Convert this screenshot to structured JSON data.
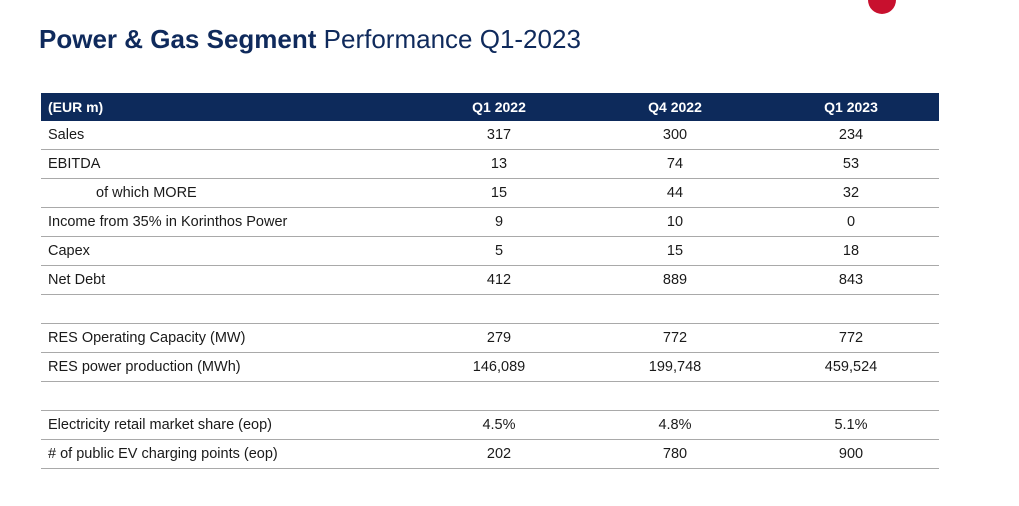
{
  "title": {
    "bold": "Power & Gas Segment",
    "light": "Performance Q1-2023"
  },
  "table": {
    "headers": [
      "(EUR m)",
      "Q1 2022",
      "Q4 2022",
      "Q1 2023"
    ],
    "rows": [
      {
        "label": "Sales",
        "values": [
          "317",
          "300",
          "234"
        ],
        "indent": false
      },
      {
        "label": "EBITDA",
        "values": [
          "13",
          "74",
          "53"
        ],
        "indent": false
      },
      {
        "label": "of which MORE",
        "values": [
          "15",
          "44",
          "32"
        ],
        "indent": true
      },
      {
        "label": "Income from 35% in Korinthos Power",
        "values": [
          "9",
          "10",
          "0"
        ],
        "indent": false
      },
      {
        "label": "Capex",
        "values": [
          "5",
          "15",
          "18"
        ],
        "indent": false
      },
      {
        "label": "Net Debt",
        "values": [
          "412",
          "889",
          "843"
        ],
        "indent": false
      },
      {
        "spacer": true
      },
      {
        "label": "RES Operating Capacity (MW)",
        "values": [
          "279",
          "772",
          "772"
        ],
        "indent": false
      },
      {
        "label": "RES power production (MWh)",
        "values": [
          "146,089",
          "199,748",
          "459,524"
        ],
        "indent": false
      },
      {
        "spacer": true
      },
      {
        "label": "Electricity retail market share (eop)",
        "values": [
          "4.5%",
          "4.8%",
          "5.1%"
        ],
        "indent": false
      },
      {
        "label": "# of public EV charging points (eop)",
        "values": [
          "202",
          "780",
          "900"
        ],
        "indent": false
      }
    ]
  },
  "colors": {
    "navy": "#0d2a5b",
    "title": "#0f2a5c",
    "logo_red": "#c8102e",
    "rule": "#a9a9a9"
  }
}
